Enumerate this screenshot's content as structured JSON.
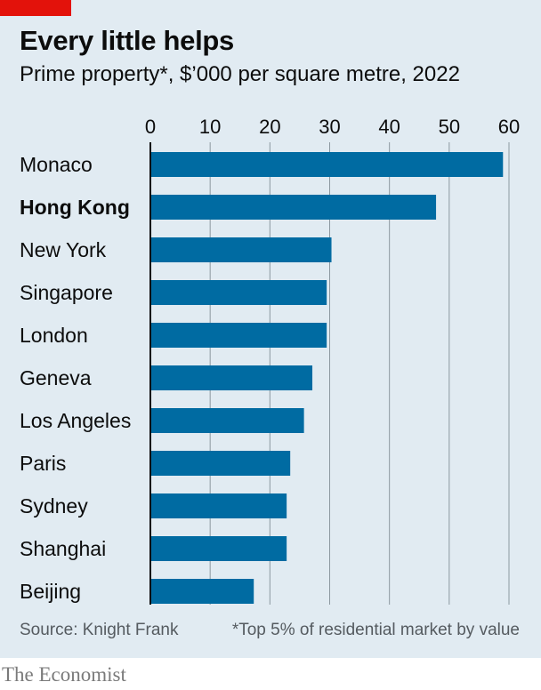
{
  "header": {
    "title": "Every little helps",
    "subtitle": "Prime property*, $’000 per square metre, 2022"
  },
  "footer": {
    "source": "Source: Knight Frank",
    "note": "*Top 5% of residential market by value",
    "brand": "The Economist"
  },
  "colors": {
    "background": "#e1ebf2",
    "bar": "#006ba2",
    "gridline": "#8c98a0",
    "accent": "#e3120b"
  },
  "chart_data": {
    "type": "bar",
    "orientation": "horizontal",
    "categories": [
      "Monaco",
      "Hong Kong",
      "New York",
      "Singapore",
      "London",
      "Geneva",
      "Los Angeles",
      "Paris",
      "Sydney",
      "Shanghai",
      "Beijing"
    ],
    "highlighted_category": "Hong Kong",
    "values": [
      59,
      47.8,
      30.3,
      29.5,
      29.5,
      27.1,
      25.7,
      23.4,
      22.8,
      22.8,
      17.3
    ],
    "xlim": [
      0,
      60
    ],
    "xticks": [
      "0",
      "10",
      "20",
      "30",
      "40",
      "50",
      "60"
    ],
    "grid": true,
    "axis_position": "top",
    "legend": "none"
  }
}
